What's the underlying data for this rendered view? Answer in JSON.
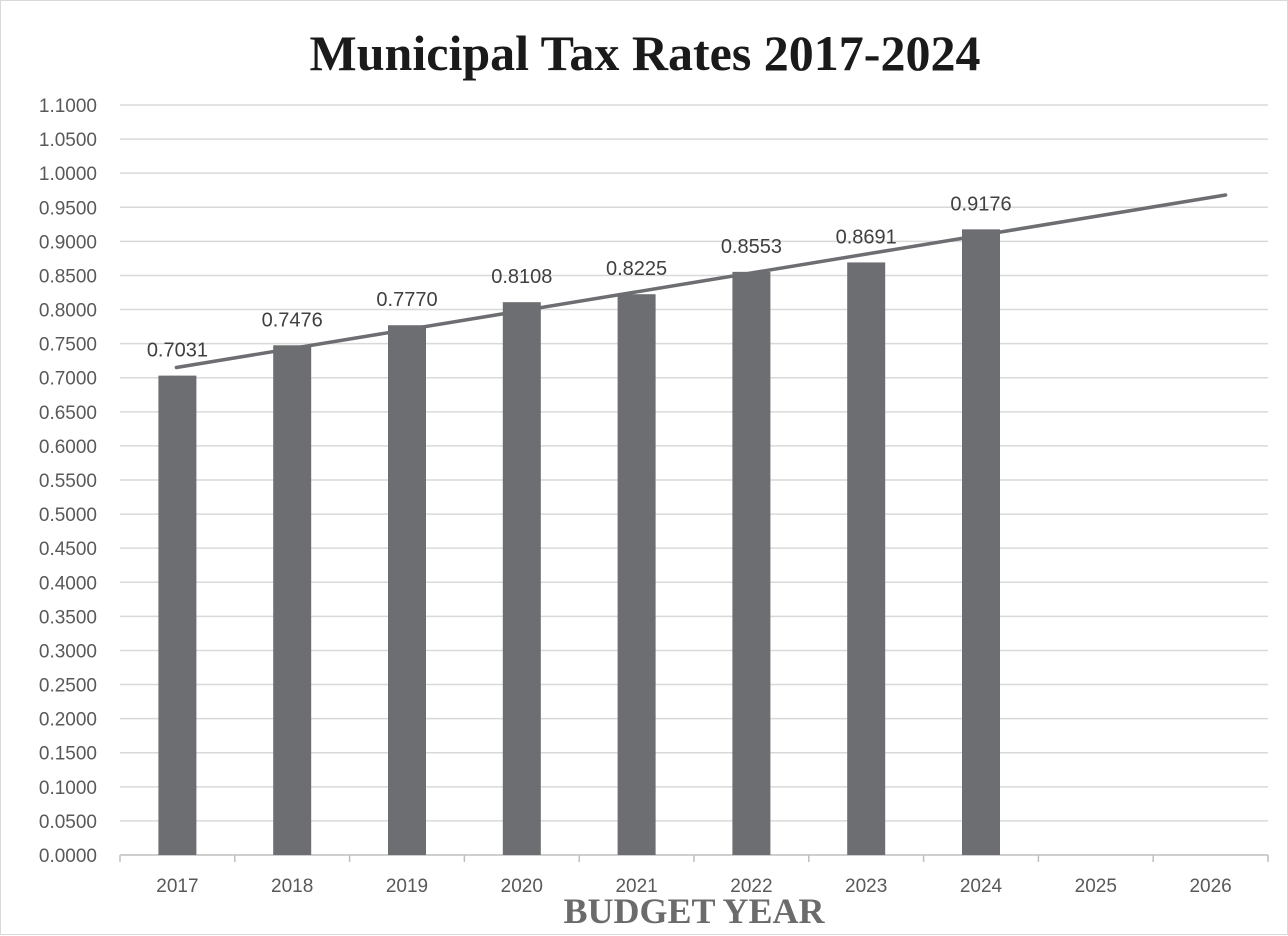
{
  "chart_data": {
    "type": "bar",
    "title": "Municipal Tax Rates 2017-2024",
    "xlabel": "BUDGET YEAR",
    "ylabel": "",
    "categories": [
      "2017",
      "2018",
      "2019",
      "2020",
      "2021",
      "2022",
      "2023",
      "2024",
      "2025",
      "2026"
    ],
    "series": [
      {
        "values": [
          0.7031,
          0.7476,
          0.777,
          0.8108,
          0.8225,
          0.8553,
          0.8691,
          0.9176,
          null,
          null
        ],
        "data_labels": [
          "0.7031",
          "0.7476",
          "0.7770",
          "0.8108",
          "0.8225",
          "0.8553",
          "0.8691",
          "0.9176",
          "",
          ""
        ],
        "color": "#6d6e71"
      }
    ],
    "trendline": {
      "type": "linear",
      "from_category": "2017",
      "to_category": "2026",
      "start_value": 0.715,
      "end_value": 0.968,
      "color": "#6d6e71"
    },
    "ylim": [
      0,
      1.1
    ],
    "y_ticks": [
      "0.0000",
      "0.0500",
      "0.1000",
      "0.1500",
      "0.2000",
      "0.2500",
      "0.3000",
      "0.3500",
      "0.4000",
      "0.4500",
      "0.5000",
      "0.5500",
      "0.6000",
      "0.6500",
      "0.7000",
      "0.7500",
      "0.8000",
      "0.8500",
      "0.9000",
      "0.9500",
      "1.0000",
      "1.0500",
      "1.1000"
    ],
    "grid": true,
    "legend": "none"
  }
}
